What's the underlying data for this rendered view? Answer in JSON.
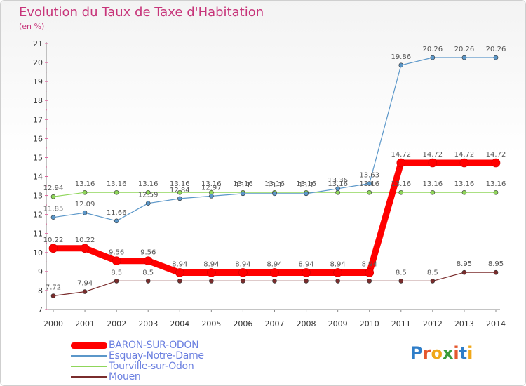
{
  "title": "Evolution du Taux de Taxe d'Habitation",
  "unit": "(en %)",
  "logo": {
    "text": "Proxiti",
    "colors": [
      "#2f7ec9",
      "#e4572e",
      "#f0a81a",
      "#3a9c3a",
      "#e4572e",
      "#2f7ec9",
      "#f0a81a"
    ]
  },
  "chart_data": {
    "type": "line",
    "x": [
      2000,
      2001,
      2002,
      2003,
      2004,
      2005,
      2006,
      2007,
      2008,
      2009,
      2010,
      2011,
      2012,
      2013,
      2014
    ],
    "ylim": [
      7,
      21
    ],
    "yticks": [
      7,
      8,
      9,
      10,
      11,
      12,
      13,
      14,
      15,
      16,
      17,
      18,
      19,
      20,
      21
    ],
    "grid": false,
    "legend_position": "bottom-left",
    "series": [
      {
        "name": "BARON-SUR-ODON",
        "color": "#ff0000",
        "width": 9,
        "values": [
          10.22,
          10.22,
          9.56,
          9.56,
          8.94,
          8.94,
          8.94,
          8.94,
          8.94,
          8.94,
          8.94,
          14.72,
          14.72,
          14.72,
          14.72
        ],
        "labels": [
          "10.22",
          "10.22",
          "9.56",
          "9.56",
          "8.94",
          "8.94",
          "8.94",
          "8.94",
          "8.94",
          "8.94",
          "8.94",
          "14.72",
          "14.72",
          "14.72",
          "14.72"
        ]
      },
      {
        "name": "Esquay-Notre-Dame",
        "color": "#5b97c9",
        "width": 1.2,
        "values": [
          11.85,
          12.09,
          11.66,
          12.59,
          12.84,
          12.97,
          13.1,
          13.1,
          13.1,
          13.36,
          13.63,
          19.86,
          20.26,
          20.26,
          20.26
        ],
        "labels": [
          "11.85",
          "12.09",
          "11.66",
          "12.59",
          "12.84",
          "12.97",
          "13.1",
          "13.1",
          "13.1",
          "13.36",
          "13.63",
          "19.86",
          "20.26",
          "20.26",
          "20.26"
        ]
      },
      {
        "name": "Tourville-sur-Odon",
        "color": "#8fd65a",
        "width": 1.2,
        "values": [
          12.94,
          13.16,
          13.16,
          13.16,
          13.16,
          13.16,
          13.16,
          13.16,
          13.16,
          13.16,
          13.16,
          13.16,
          13.16,
          13.16,
          13.16
        ],
        "labels": [
          "12.94",
          "13.16",
          "13.16",
          "13.16",
          "13.16",
          "13.16",
          "13.16",
          "13.16",
          "13.16",
          "13.16",
          "13.16",
          "13.16",
          "13.16",
          "13.16",
          "13.16"
        ]
      },
      {
        "name": "Mouen",
        "color": "#7a2c2c",
        "width": 1.2,
        "values": [
          7.72,
          7.94,
          8.5,
          8.5,
          8.5,
          8.5,
          8.5,
          8.5,
          8.5,
          8.5,
          8.5,
          8.5,
          8.5,
          8.95,
          8.95
        ],
        "labels": [
          "7.72",
          "7.94",
          "8.5",
          "8.5",
          "",
          "",
          "",
          "",
          "",
          "",
          "",
          "8.5",
          "8.5",
          "8.95",
          "8.95"
        ]
      }
    ]
  }
}
